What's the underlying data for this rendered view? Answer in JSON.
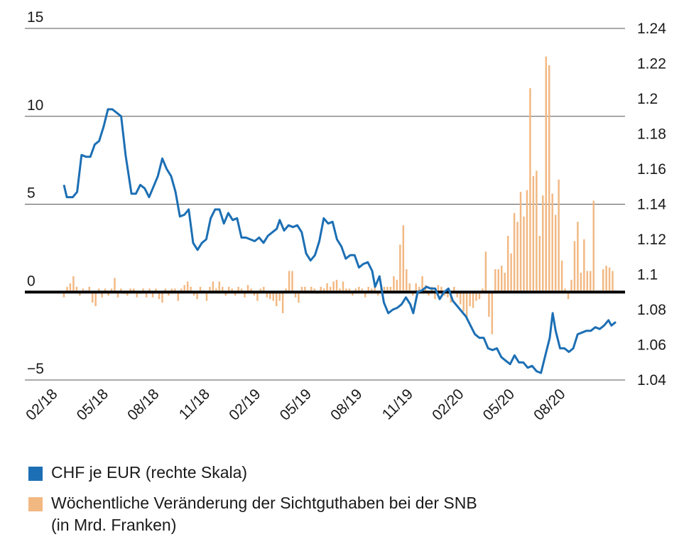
{
  "chart_data": {
    "type": "bar+line",
    "left_axis": {
      "ticks": [
        15,
        10,
        5,
        0,
        -5
      ],
      "range": [
        -5,
        15
      ]
    },
    "right_axis": {
      "ticks": [
        1.24,
        1.22,
        1.2,
        1.18,
        1.16,
        1.14,
        1.12,
        1.1,
        1.08,
        1.06,
        1.04
      ],
      "range": [
        1.04,
        1.24
      ]
    },
    "x_ticks": [
      "02/18",
      "05/18",
      "08/18",
      "11/18",
      "02/19",
      "05/19",
      "08/19",
      "11/19",
      "02/20",
      "05/20",
      "08/20"
    ],
    "grid": true,
    "legend_position": "bottom",
    "series": [
      {
        "name": "CHF je EUR (rechte Skala)",
        "kind": "line",
        "axis": "right",
        "color": "#1c6fb4",
        "points": [
          [
            0.0,
            1.151
          ],
          [
            0.1,
            1.144
          ],
          [
            0.3,
            1.144
          ],
          [
            0.45,
            1.147
          ],
          [
            0.6,
            1.168
          ],
          [
            0.75,
            1.167
          ],
          [
            0.9,
            1.167
          ],
          [
            1.05,
            1.174
          ],
          [
            1.2,
            1.176
          ],
          [
            1.35,
            1.184
          ],
          [
            1.5,
            1.194
          ],
          [
            1.65,
            1.194
          ],
          [
            1.8,
            1.192
          ],
          [
            1.95,
            1.19
          ],
          [
            2.1,
            1.168
          ],
          [
            2.3,
            1.146
          ],
          [
            2.45,
            1.146
          ],
          [
            2.6,
            1.151
          ],
          [
            2.75,
            1.149
          ],
          [
            2.9,
            1.144
          ],
          [
            3.05,
            1.15
          ],
          [
            3.2,
            1.156
          ],
          [
            3.35,
            1.166
          ],
          [
            3.5,
            1.16
          ],
          [
            3.65,
            1.156
          ],
          [
            3.8,
            1.147
          ],
          [
            3.95,
            1.133
          ],
          [
            4.1,
            1.134
          ],
          [
            4.25,
            1.137
          ],
          [
            4.4,
            1.118
          ],
          [
            4.55,
            1.114
          ],
          [
            4.7,
            1.118
          ],
          [
            4.85,
            1.12
          ],
          [
            5.0,
            1.132
          ],
          [
            5.15,
            1.137
          ],
          [
            5.3,
            1.137
          ],
          [
            5.45,
            1.129
          ],
          [
            5.6,
            1.135
          ],
          [
            5.75,
            1.131
          ],
          [
            5.9,
            1.132
          ],
          [
            6.05,
            1.121
          ],
          [
            6.2,
            1.121
          ],
          [
            6.35,
            1.12
          ],
          [
            6.5,
            1.119
          ],
          [
            6.65,
            1.121
          ],
          [
            6.8,
            1.118
          ],
          [
            6.95,
            1.122
          ],
          [
            7.1,
            1.124
          ],
          [
            7.25,
            1.126
          ],
          [
            7.35,
            1.131
          ],
          [
            7.5,
            1.125
          ],
          [
            7.65,
            1.128
          ],
          [
            7.8,
            1.127
          ],
          [
            7.95,
            1.128
          ],
          [
            8.1,
            1.124
          ],
          [
            8.25,
            1.112
          ],
          [
            8.4,
            1.108
          ],
          [
            8.55,
            1.111
          ],
          [
            8.7,
            1.119
          ],
          [
            8.85,
            1.132
          ],
          [
            9.0,
            1.129
          ],
          [
            9.15,
            1.13
          ],
          [
            9.3,
            1.12
          ],
          [
            9.45,
            1.116
          ],
          [
            9.6,
            1.109
          ],
          [
            9.75,
            1.111
          ],
          [
            9.9,
            1.111
          ],
          [
            10.05,
            1.104
          ],
          [
            10.2,
            1.106
          ],
          [
            10.35,
            1.107
          ],
          [
            10.5,
            1.102
          ],
          [
            10.6,
            1.093
          ],
          [
            10.75,
            1.099
          ],
          [
            10.9,
            1.084
          ],
          [
            11.05,
            1.078
          ],
          [
            11.2,
            1.08
          ],
          [
            11.35,
            1.081
          ],
          [
            11.5,
            1.083
          ],
          [
            11.65,
            1.087
          ],
          [
            11.8,
            1.083
          ],
          [
            11.9,
            1.078
          ],
          [
            12.05,
            1.09
          ],
          [
            12.2,
            1.091
          ],
          [
            12.35,
            1.093
          ],
          [
            12.5,
            1.092
          ],
          [
            12.65,
            1.092
          ],
          [
            12.8,
            1.086
          ],
          [
            12.95,
            1.09
          ],
          [
            13.1,
            1.092
          ],
          [
            13.25,
            1.085
          ],
          [
            13.4,
            1.082
          ],
          [
            13.55,
            1.079
          ],
          [
            13.7,
            1.076
          ],
          [
            13.85,
            1.071
          ],
          [
            14.0,
            1.066
          ],
          [
            14.15,
            1.064
          ],
          [
            14.3,
            1.064
          ],
          [
            14.45,
            1.058
          ],
          [
            14.6,
            1.057
          ],
          [
            14.75,
            1.058
          ],
          [
            14.9,
            1.053
          ],
          [
            15.05,
            1.051
          ],
          [
            15.2,
            1.049
          ],
          [
            15.35,
            1.054
          ],
          [
            15.5,
            1.05
          ],
          [
            15.65,
            1.05
          ],
          [
            15.8,
            1.047
          ],
          [
            15.95,
            1.048
          ],
          [
            16.1,
            1.045
          ],
          [
            16.25,
            1.044
          ],
          [
            16.4,
            1.054
          ],
          [
            16.55,
            1.064
          ],
          [
            16.65,
            1.078
          ],
          [
            16.75,
            1.068
          ],
          [
            16.9,
            1.058
          ],
          [
            17.05,
            1.058
          ],
          [
            17.2,
            1.056
          ],
          [
            17.35,
            1.058
          ],
          [
            17.5,
            1.066
          ],
          [
            17.65,
            1.067
          ],
          [
            17.8,
            1.068
          ],
          [
            17.95,
            1.068
          ],
          [
            18.1,
            1.07
          ],
          [
            18.25,
            1.069
          ],
          [
            18.4,
            1.071
          ],
          [
            18.55,
            1.074
          ],
          [
            18.65,
            1.071
          ],
          [
            18.8,
            1.073
          ]
        ]
      },
      {
        "name": "Wöchentliche Veränderung der Sichtguthaben bei der SNB (in Mrd. Franken)",
        "kind": "bar",
        "axis": "left",
        "color": "#f2b882",
        "x_start": 0.0,
        "x_step": 0.22,
        "values": [
          -0.3,
          0.3,
          0.5,
          0.9,
          0.3,
          -0.2,
          0.2,
          0.1,
          0.3,
          -0.6,
          -0.8,
          0.2,
          -0.3,
          0.2,
          -0.2,
          0.2,
          0.8,
          -0.3,
          0.2,
          -0.1,
          -0.2,
          0.2,
          0.2,
          -0.3,
          -0.1,
          0.2,
          -0.3,
          0.2,
          -0.3,
          0.2,
          -0.4,
          -0.6,
          0.2,
          -0.2,
          0.2,
          0.2,
          -0.5,
          0.2,
          0.4,
          0.6,
          0.3,
          -0.2,
          -0.4,
          0.3,
          0.1,
          -0.5,
          0.3,
          0.6,
          0.2,
          0.6,
          0.3,
          -0.2,
          0.3,
          0.2,
          -0.2,
          0.3,
          0.2,
          -0.3,
          0.4,
          0.2,
          -0.2,
          -0.5,
          0.2,
          0.3,
          -0.3,
          -0.4,
          -0.5,
          -0.8,
          -0.5,
          -1.2,
          0.2,
          1.2,
          1.2,
          -0.3,
          -0.6,
          0.3,
          0.3,
          0.1,
          0.3,
          0.2,
          -0.1,
          0.3,
          0.2,
          0.5,
          0.3,
          0.6,
          0.7,
          0.2,
          0.6,
          0.2,
          0.2,
          -0.2,
          0.2,
          0.3,
          0.2,
          -0.3,
          0.3,
          0.2,
          0.4,
          -0.2,
          0.2,
          0.3,
          0.3,
          0.3,
          0.9,
          0.7,
          2.7,
          3.8,
          1.3,
          0.5,
          -0.2,
          0.5,
          0.3,
          0.9,
          0.4,
          -0.2,
          0.3,
          -0.4,
          0.4,
          0.3,
          -0.2,
          -0.3,
          -0.6,
          0.3,
          -0.3,
          -0.7,
          -1.1,
          -1.5,
          -0.8,
          -0.9,
          -0.5,
          -0.4,
          0.2,
          2.3,
          -1.4,
          -2.4,
          1.3,
          1.3,
          1.5,
          1.1,
          3.2,
          2.2,
          4.5,
          4.0,
          5.7,
          4.3,
          5.8,
          11.6,
          6.6,
          6.9,
          3.2,
          5.5,
          13.4,
          12.9,
          5.6,
          4.4,
          6.4,
          1.8,
          0.2,
          -0.4,
          0.7,
          2.9,
          4.0,
          1.1,
          3.0,
          1.2,
          1.2,
          5.2,
          0.1,
          0.1,
          1.3,
          1.5,
          1.4,
          1.2,
          0.1
        ]
      }
    ]
  }
}
